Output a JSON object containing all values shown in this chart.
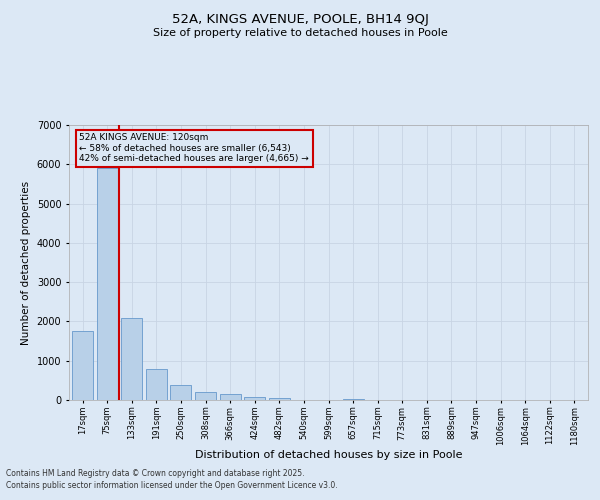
{
  "title1": "52A, KINGS AVENUE, POOLE, BH14 9QJ",
  "title2": "Size of property relative to detached houses in Poole",
  "xlabel": "Distribution of detached houses by size in Poole",
  "ylabel": "Number of detached properties",
  "categories": [
    "17sqm",
    "75sqm",
    "133sqm",
    "191sqm",
    "250sqm",
    "308sqm",
    "366sqm",
    "424sqm",
    "482sqm",
    "540sqm",
    "599sqm",
    "657sqm",
    "715sqm",
    "773sqm",
    "831sqm",
    "889sqm",
    "947sqm",
    "1006sqm",
    "1064sqm",
    "1122sqm",
    "1180sqm"
  ],
  "values": [
    1750,
    5900,
    2100,
    800,
    380,
    210,
    160,
    70,
    40,
    0,
    0,
    30,
    0,
    0,
    0,
    0,
    0,
    0,
    0,
    0,
    0
  ],
  "bar_color": "#b8d0e8",
  "bar_edge_color": "#6699cc",
  "vline_color": "#cc0000",
  "vline_pos": 1.5,
  "annotation_title": "52A KINGS AVENUE: 120sqm",
  "annotation_line1": "← 58% of detached houses are smaller (6,543)",
  "annotation_line2": "42% of semi-detached houses are larger (4,665) →",
  "annotation_box_color": "#cc0000",
  "annotation_bg": "#dce8f5",
  "ylim": [
    0,
    7000
  ],
  "yticks": [
    0,
    1000,
    2000,
    3000,
    4000,
    5000,
    6000,
    7000
  ],
  "grid_color": "#c8d4e4",
  "background_color": "#dce8f5",
  "footer1": "Contains HM Land Registry data © Crown copyright and database right 2025.",
  "footer2": "Contains public sector information licensed under the Open Government Licence v3.0."
}
